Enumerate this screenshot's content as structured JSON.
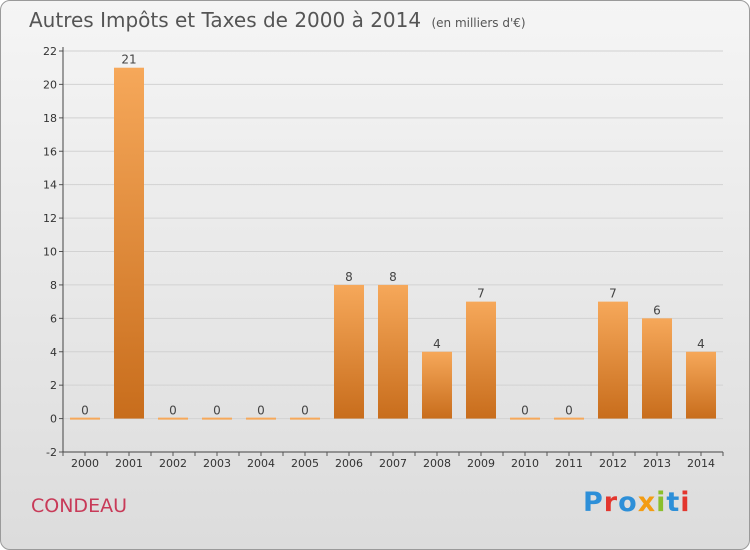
{
  "header": {
    "title": "Autres Impôts et Taxes de 2000 à 2014",
    "unit": "(en milliers d'€)"
  },
  "footer": {
    "commune": "CONDEAU",
    "logo_text": "Proxiti"
  },
  "colors": {
    "bar_light": "#f6a85a",
    "bar_dark": "#c86d1c",
    "commune": "#c83a58",
    "logo": [
      "#2d8fd8",
      "#e3362e",
      "#2d8fd8",
      "#f39c12",
      "#8bbf2c",
      "#2d8fd8",
      "#e3362e"
    ]
  },
  "chart_data": {
    "type": "bar",
    "title": "Autres Impôts et Taxes de 2000 à 2014",
    "subtitle": "(en milliers d'€)",
    "xlabel": "",
    "ylabel": "",
    "categories": [
      "2000",
      "2001",
      "2002",
      "2003",
      "2004",
      "2005",
      "2006",
      "2007",
      "2008",
      "2009",
      "2010",
      "2011",
      "2012",
      "2013",
      "2014"
    ],
    "values": [
      0,
      21,
      0,
      0,
      0,
      0,
      8,
      8,
      4,
      7,
      0,
      0,
      7,
      6,
      4
    ],
    "data_labels": [
      "0",
      "21",
      "0",
      "0",
      "0",
      "0",
      "8",
      "8",
      "4",
      "7",
      "0",
      "0",
      "7",
      "6",
      "4"
    ],
    "ylim": [
      -2,
      22
    ],
    "yticks": [
      -2,
      0,
      2,
      4,
      6,
      8,
      10,
      12,
      14,
      16,
      18,
      20,
      22
    ],
    "grid": true,
    "legend": "none"
  }
}
